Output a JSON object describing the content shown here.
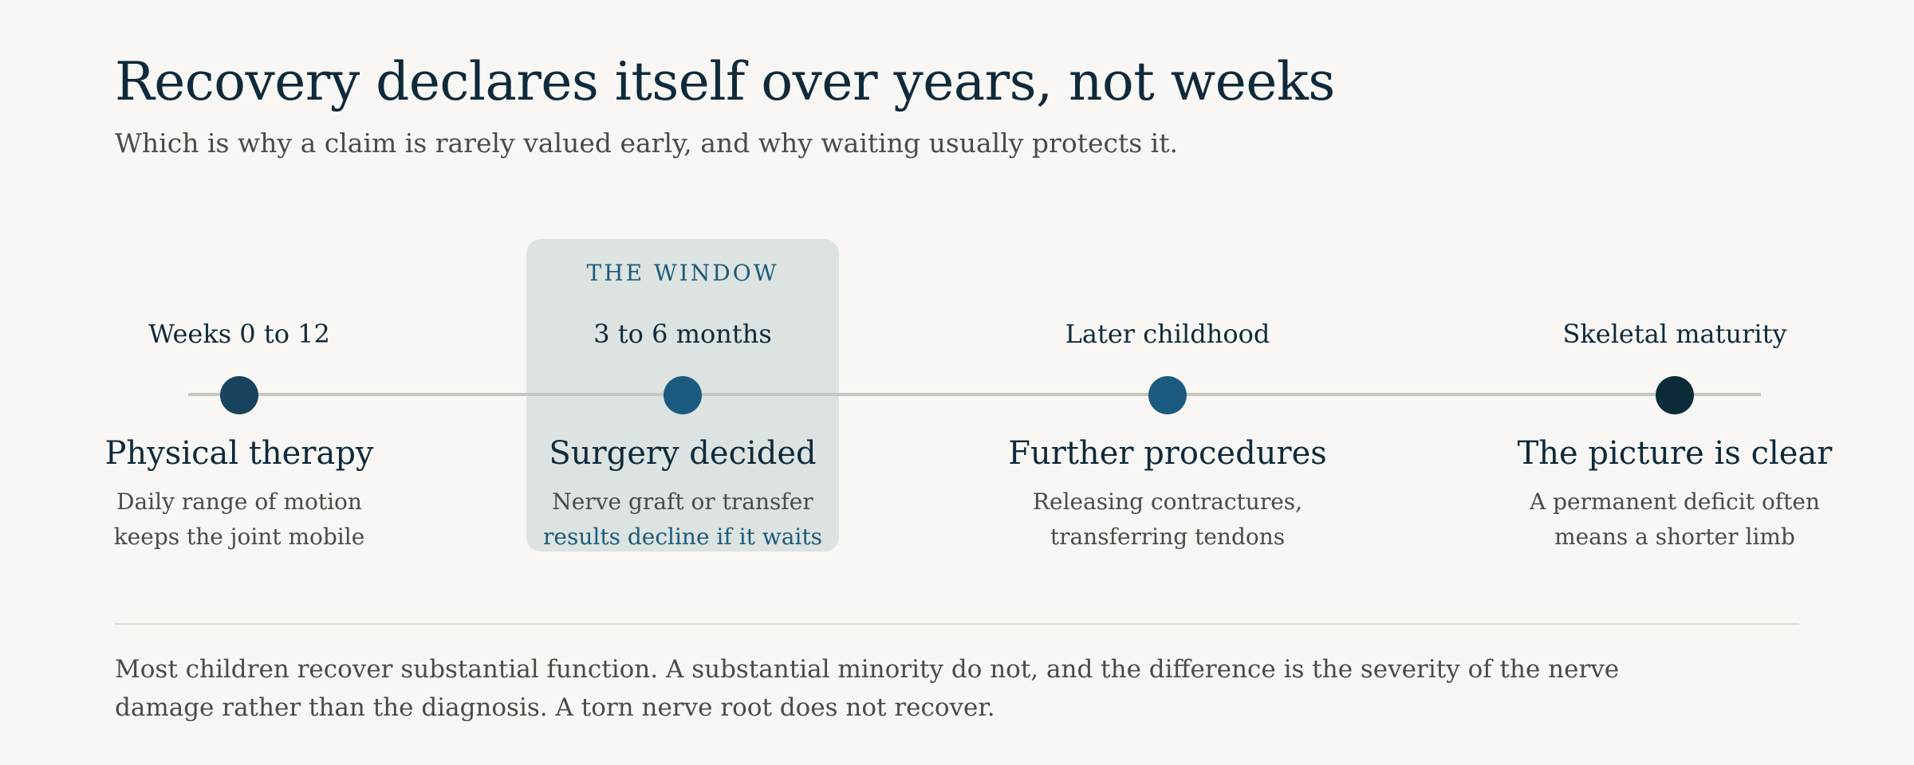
{
  "header": {
    "title": "Recovery declares itself over years, not weeks",
    "subtitle": "Which is why a claim is rarely valued early, and why waiting usually protects it."
  },
  "highlight": {
    "label": "THE WINDOW"
  },
  "stages": [
    {
      "when": "Weeks 0 to 12",
      "title": "Physical therapy",
      "desc": [
        "Daily range of motion",
        "keeps the joint mobile"
      ],
      "dot_color": "#17435e"
    },
    {
      "when": "3 to 6 months",
      "title": "Surgery decided",
      "desc": [
        "Nerve graft or transfer",
        "results decline if it waits"
      ],
      "dot_color": "#1b5b80"
    },
    {
      "when": "Later childhood",
      "title": "Further procedures",
      "desc": [
        "Releasing contractures,",
        "transferring tendons"
      ],
      "dot_color": "#1b5b80"
    },
    {
      "when": "Skeletal maturity",
      "title": "The picture is clear",
      "desc": [
        "A permanent deficit often",
        "means a shorter limb"
      ],
      "dot_color": "#0b2a3a"
    }
  ],
  "footnote": {
    "lines": [
      "Most children recover substantial function. A substantial minority do not, and the difference is the severity of the nerve",
      "damage rather than the diagnosis. A torn nerve root does not recover."
    ]
  },
  "colors": {
    "background": "#f8f7f3",
    "heading": "#0e2a3b",
    "body_text": "#4a4a46",
    "accent": "#1d5a7a",
    "window_fill": "#dce3e1",
    "line": "#c5c6c1"
  }
}
